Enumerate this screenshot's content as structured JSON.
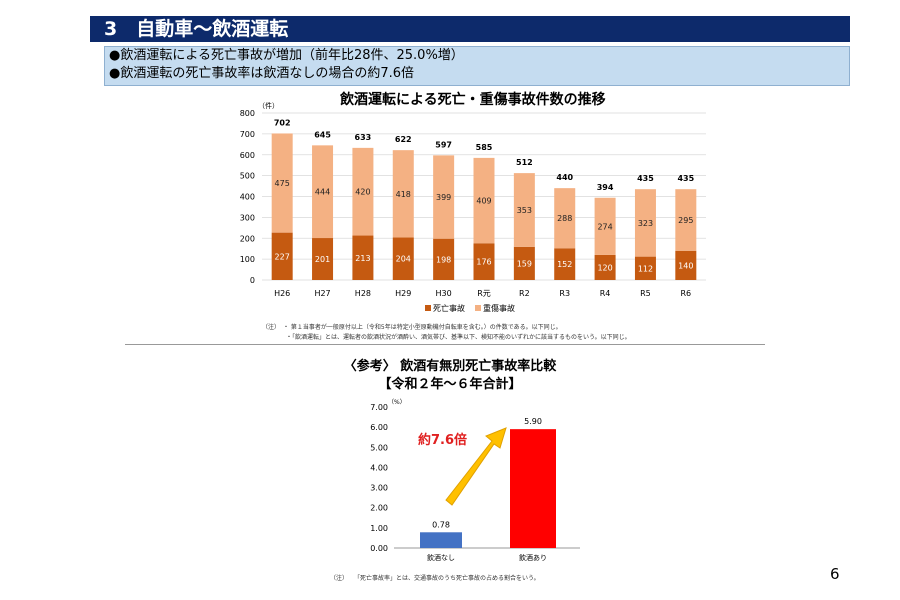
{
  "header": {
    "title": "3　自動車～飲酒運転"
  },
  "summary": [
    "●飲酒運転による死亡事故が増加（前年比28件、25.0%増）",
    "●飲酒運転の死亡事故率は飲酒なしの場合の約7.6倍"
  ],
  "notes1": [
    "（注）　・ 第１当事者が一般原付以上（令和5年は特定小型原動機付自転車を含む。）の件数である。以下同じ。",
    "・「飲酒運転」とは、運転者の飲酒状況が酒酔い、酒気帯び、基準以下、検知不能のいずれかに該当するものをいう。以下同じ。"
  ],
  "ref_title": "〈参考〉 飲酒有無別死亡事故率比較",
  "ref_subtitle": "【令和２年～６年合計】",
  "note2": "（注）　　「死亡事故率」とは、交通事故のうち死亡事故の占める割合をいう。",
  "page_number": "6",
  "chart_data": [
    {
      "type": "bar",
      "stacked": true,
      "title": "飲酒運転による死亡・重傷事故件数の推移",
      "ylabel": "（件）",
      "ylim": [
        0,
        800
      ],
      "yticks": [
        0,
        100,
        200,
        300,
        400,
        500,
        600,
        700,
        800
      ],
      "grid": true,
      "legend": "bottom",
      "categories": [
        "H26",
        "H27",
        "H28",
        "H29",
        "H30",
        "R元",
        "R2",
        "R3",
        "R4",
        "R5",
        "R6"
      ],
      "series": [
        {
          "name": "死亡事故",
          "color": "#c55a11",
          "values": [
            227,
            201,
            213,
            204,
            198,
            176,
            159,
            152,
            120,
            112,
            140
          ]
        },
        {
          "name": "重傷事故",
          "color": "#f4b183",
          "values": [
            475,
            444,
            420,
            418,
            399,
            409,
            353,
            288,
            274,
            323,
            295
          ]
        }
      ],
      "totals": [
        702,
        645,
        633,
        622,
        597,
        585,
        512,
        440,
        394,
        435,
        435
      ]
    },
    {
      "type": "bar",
      "ylabel": "（%）",
      "ylim": [
        0,
        7
      ],
      "yticks": [
        "0.00",
        "1.00",
        "2.00",
        "3.00",
        "4.00",
        "5.00",
        "6.00",
        "7.00"
      ],
      "grid": false,
      "categories": [
        "飲酒なし",
        "飲酒あり"
      ],
      "values": [
        0.78,
        5.9
      ],
      "value_labels": [
        "0.78",
        "5.90"
      ],
      "colors": [
        "#4472c4",
        "#ff0000"
      ],
      "annotation": "約7.6倍"
    }
  ]
}
